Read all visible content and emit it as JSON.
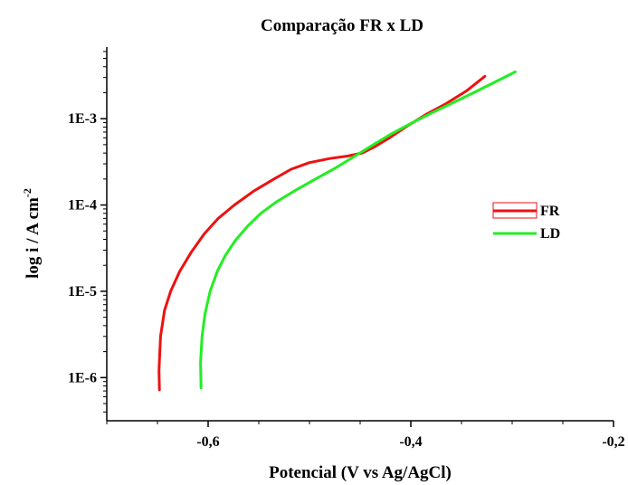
{
  "chart_data": {
    "type": "line",
    "title": "Comparação FR x LD",
    "xlabel": "Potencial (V vs Ag/AgCl)",
    "ylabel_main": "log i / A cm",
    "ylabel_sup": "-2",
    "xlim": [
      -0.7,
      -0.2
    ],
    "ylim_log10": [
      -6.5,
      -2.17
    ],
    "y_scale": "log",
    "x_ticks": [
      {
        "value": -0.6,
        "label": "-0,6"
      },
      {
        "value": -0.4,
        "label": "-0,4"
      },
      {
        "value": -0.2,
        "label": "-0,2"
      }
    ],
    "y_ticks": [
      {
        "exp": -6,
        "label": "1E-6"
      },
      {
        "exp": -5,
        "label": "1E-5"
      },
      {
        "exp": -4,
        "label": "1E-4"
      },
      {
        "exp": -3,
        "label": "1E-3"
      }
    ],
    "legend_position": "right",
    "series": [
      {
        "name": "FR",
        "color": "#ee1111",
        "points": [
          [
            -0.648,
            7.2e-07
          ],
          [
            -0.6485,
            1.2e-06
          ],
          [
            -0.647,
            3e-06
          ],
          [
            -0.643,
            6e-06
          ],
          [
            -0.637,
            1e-05
          ],
          [
            -0.628,
            1.7e-05
          ],
          [
            -0.617,
            2.8e-05
          ],
          [
            -0.604,
            4.6e-05
          ],
          [
            -0.59,
            7e-05
          ],
          [
            -0.574,
            0.0001
          ],
          [
            -0.555,
            0.000145
          ],
          [
            -0.535,
            0.0002
          ],
          [
            -0.518,
            0.00026
          ],
          [
            -0.5,
            0.00031
          ],
          [
            -0.48,
            0.000345
          ],
          [
            -0.462,
            0.00037
          ],
          [
            -0.448,
            0.0004
          ],
          [
            -0.436,
            0.00047
          ],
          [
            -0.421,
            0.0006
          ],
          [
            -0.405,
            0.0008
          ],
          [
            -0.385,
            0.00112
          ],
          [
            -0.365,
            0.0015
          ],
          [
            -0.345,
            0.0021
          ],
          [
            -0.327,
            0.0031
          ]
        ]
      },
      {
        "name": "LD",
        "color": "#22ee22",
        "points": [
          [
            -0.607,
            7.6e-07
          ],
          [
            -0.6075,
            1.5e-06
          ],
          [
            -0.606,
            3e-06
          ],
          [
            -0.603,
            5.5e-06
          ],
          [
            -0.598,
            1e-05
          ],
          [
            -0.591,
            1.7e-05
          ],
          [
            -0.583,
            2.6e-05
          ],
          [
            -0.573,
            3.9e-05
          ],
          [
            -0.561,
            5.7e-05
          ],
          [
            -0.548,
            8e-05
          ],
          [
            -0.532,
            0.00011
          ],
          [
            -0.513,
            0.00015
          ],
          [
            -0.494,
            0.0002
          ],
          [
            -0.474,
            0.00027
          ],
          [
            -0.455,
            0.00037
          ],
          [
            -0.437,
            0.0005
          ],
          [
            -0.419,
            0.00067
          ],
          [
            -0.4,
            0.00088
          ],
          [
            -0.381,
            0.00114
          ],
          [
            -0.36,
            0.0015
          ],
          [
            -0.34,
            0.00195
          ],
          [
            -0.32,
            0.00255
          ],
          [
            -0.3,
            0.00335
          ],
          [
            -0.297,
            0.0035
          ]
        ]
      }
    ]
  }
}
